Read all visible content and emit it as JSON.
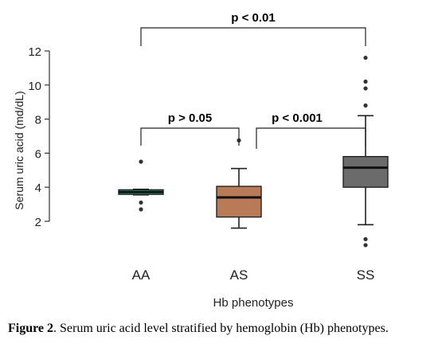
{
  "chart_data": {
    "type": "box",
    "xlabel": "Hb phenotypes",
    "ylabel": "Serum uric acid (md/dL)",
    "ylim": [
      0.7,
      12
    ],
    "y_ticks": [
      2,
      4,
      6,
      8,
      10,
      12
    ],
    "categories": [
      "AA",
      "AS",
      "SS"
    ],
    "boxes": [
      {
        "category": "AA",
        "color": "#2e9d7e",
        "whisker_low": 3.55,
        "q1": 3.58,
        "median": 3.72,
        "q3": 3.85,
        "whisker_high": 3.88,
        "outliers": [
          2.7,
          3.1,
          5.5
        ]
      },
      {
        "category": "AS",
        "color": "#b97a57",
        "whisker_low": 1.6,
        "q1": 2.25,
        "median": 3.4,
        "q3": 4.05,
        "whisker_high": 5.1,
        "outliers": [
          6.75
        ]
      },
      {
        "category": "SS",
        "color": "#6b6b6b",
        "whisker_low": 1.8,
        "q1": 4.0,
        "median": 5.15,
        "q3": 5.8,
        "whisker_high": 8.2,
        "outliers": [
          0.6,
          0.95,
          8.8,
          9.8,
          10.2,
          11.6
        ]
      }
    ],
    "comparisons": [
      {
        "from": "AA",
        "to": "AS",
        "label": "p > 0.05"
      },
      {
        "from": "AS",
        "to": "SS",
        "label": "p < 0.001"
      },
      {
        "from": "AA",
        "to": "SS",
        "label": "p < 0.01"
      }
    ]
  },
  "caption": {
    "label": "Figure 2",
    "text": ". Serum uric acid level stratified by hemoglobin (Hb) phenotypes."
  }
}
